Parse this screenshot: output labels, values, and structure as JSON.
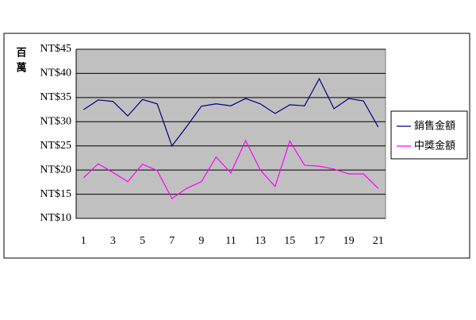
{
  "chart_data": {
    "type": "line",
    "y_label": "百萬",
    "x": [
      1,
      2,
      3,
      4,
      5,
      6,
      7,
      8,
      9,
      10,
      11,
      12,
      13,
      14,
      15,
      16,
      17,
      18,
      19,
      20,
      21
    ],
    "xlim": [
      0.5,
      21.5
    ],
    "xticks": [
      1,
      3,
      5,
      7,
      9,
      11,
      13,
      15,
      17,
      19,
      21
    ],
    "ylim": [
      10,
      45
    ],
    "yticks": [
      {
        "value": 10,
        "label": "NT$10"
      },
      {
        "value": 15,
        "label": "NT$15"
      },
      {
        "value": 20,
        "label": "NT$20"
      },
      {
        "value": 25,
        "label": "NT$25"
      },
      {
        "value": 30,
        "label": "NT$30"
      },
      {
        "value": 35,
        "label": "NT$35"
      },
      {
        "value": 40,
        "label": "NT$40"
      },
      {
        "value": 45,
        "label": "NT$45"
      }
    ],
    "grid": true,
    "legend": "right",
    "series": [
      {
        "name": "銷售金額",
        "color": "#000080",
        "values": [
          32.5,
          34.5,
          34.2,
          31.2,
          34.6,
          33.7,
          25,
          29,
          33.2,
          33.7,
          33.3,
          34.8,
          33.7,
          31.7,
          33.5,
          33.3,
          38.9,
          32.7,
          34.8,
          34.3,
          28.9
        ]
      },
      {
        "name": "中獎金額",
        "color": "#ff00ff",
        "values": [
          18.4,
          21.3,
          19.5,
          17.6,
          21.2,
          19.9,
          14.1,
          16.2,
          17.6,
          22.7,
          19.4,
          26.1,
          20,
          16.6,
          26,
          21,
          20.8,
          20.2,
          19.2,
          19.2,
          16.2
        ]
      }
    ]
  }
}
